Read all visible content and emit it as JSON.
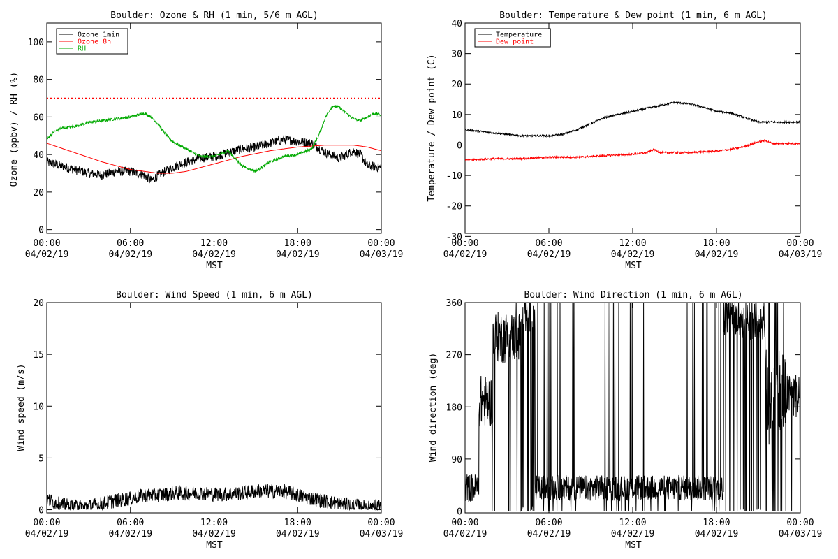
{
  "chart_data": [
    {
      "id": "ozone",
      "type": "line",
      "title": "Boulder: Ozone & RH (1 min, 5/6 m AGL)",
      "ylabel": "Ozone (ppbv) / RH (%)",
      "xlabel": "MST",
      "xlim": [
        0,
        24
      ],
      "ylim": [
        -2,
        110
      ],
      "yticks": [
        0,
        20,
        40,
        60,
        80,
        100
      ],
      "xticks": [
        {
          "h": 0,
          "time": "00:00",
          "date": "04/02/19"
        },
        {
          "h": 6,
          "time": "06:00",
          "date": "04/02/19"
        },
        {
          "h": 12,
          "time": "12:00",
          "date": "04/02/19"
        },
        {
          "h": 18,
          "time": "18:00",
          "date": "04/02/19"
        },
        {
          "h": 24,
          "time": "00:00",
          "date": "04/03/19"
        }
      ],
      "reference_line": {
        "y": 70,
        "color": "#ff0000",
        "style": "dotted"
      },
      "legend": {
        "placement": "top-left"
      },
      "series": [
        {
          "name": "Ozone 1min",
          "color": "#000000",
          "noise": 2.5,
          "x": [
            0,
            1,
            2,
            3,
            4,
            5,
            6,
            7,
            7.5,
            8,
            9,
            10,
            11,
            12,
            13,
            14,
            15,
            16,
            17,
            18,
            19,
            20,
            21,
            22,
            22.5,
            23,
            24
          ],
          "y": [
            36,
            34,
            32,
            30,
            29,
            31,
            31,
            29,
            26,
            29,
            33,
            36,
            38,
            39,
            41,
            43,
            44,
            46,
            48,
            47,
            46,
            41,
            38,
            42,
            40,
            34,
            33
          ]
        },
        {
          "name": "Ozone 8h",
          "color": "#ff0000",
          "noise": 0,
          "x": [
            0,
            2,
            4,
            6,
            7,
            8,
            9,
            10,
            12,
            14,
            16,
            18,
            20,
            21,
            22,
            23,
            24
          ],
          "y": [
            46,
            41,
            36,
            32,
            31,
            30,
            30,
            31,
            35,
            39,
            42,
            44,
            45,
            45,
            45,
            44,
            42
          ]
        },
        {
          "name": "RH",
          "color": "#00aa00",
          "noise": 0.7,
          "x": [
            0,
            0.5,
            1,
            2,
            3,
            4,
            5,
            6,
            7,
            7.5,
            8,
            8.5,
            9,
            10,
            11,
            12,
            13,
            14,
            15,
            16,
            17,
            18,
            19,
            19.5,
            20,
            20.5,
            21,
            21.5,
            22,
            22.5,
            23,
            23.5,
            24
          ],
          "y": [
            48,
            52,
            54,
            55,
            57,
            58,
            59,
            60,
            62,
            60,
            56,
            51,
            47,
            43,
            39,
            39,
            42,
            34,
            31,
            36,
            39,
            40,
            43,
            50,
            60,
            66,
            65,
            62,
            59,
            58,
            60,
            62,
            61
          ]
        }
      ]
    },
    {
      "id": "temp",
      "type": "line",
      "title": "Boulder: Temperature & Dew point (1 min, 6 m AGL)",
      "ylabel": "Temperature / Dew point (C)",
      "xlabel": "MST",
      "xlim": [
        0,
        24
      ],
      "ylim": [
        -29,
        40
      ],
      "yticks": [
        -30,
        -20,
        -10,
        0,
        10,
        20,
        30,
        40
      ],
      "xticks": [
        {
          "h": 0,
          "time": "00:00",
          "date": "04/02/19"
        },
        {
          "h": 6,
          "time": "06:00",
          "date": "04/02/19"
        },
        {
          "h": 12,
          "time": "12:00",
          "date": "04/02/19"
        },
        {
          "h": 18,
          "time": "18:00",
          "date": "04/02/19"
        },
        {
          "h": 24,
          "time": "00:00",
          "date": "04/03/19"
        }
      ],
      "legend": {
        "placement": "top-left"
      },
      "series": [
        {
          "name": "Temperature",
          "color": "#000000",
          "noise": 0.3,
          "x": [
            0,
            1,
            2,
            3,
            4,
            5,
            6,
            7,
            8,
            9,
            10,
            11,
            12,
            13,
            14,
            15,
            16,
            17,
            18,
            19,
            20,
            21,
            22,
            23,
            24
          ],
          "y": [
            5,
            4.5,
            4,
            3.5,
            3,
            3,
            3,
            3.5,
            5,
            7,
            9,
            10,
            11,
            12,
            13,
            14,
            13.5,
            12.5,
            11,
            10.5,
            9,
            7.5,
            7.5,
            7.5,
            7.5
          ]
        },
        {
          "name": "Dew point",
          "color": "#ff0000",
          "noise": 0.3,
          "x": [
            0,
            2,
            4,
            6,
            8,
            10,
            12,
            13,
            13.5,
            14,
            15,
            16,
            18,
            19,
            20,
            21,
            21.5,
            22,
            23,
            24
          ],
          "y": [
            -5,
            -4.5,
            -4.5,
            -4,
            -4,
            -3.5,
            -3,
            -2.5,
            -1.5,
            -2.5,
            -2.5,
            -2.5,
            -2,
            -1.5,
            -0.5,
            1,
            1.5,
            0.5,
            0.5,
            0.5
          ]
        }
      ]
    },
    {
      "id": "wspd",
      "type": "line",
      "title": "Boulder: Wind Speed (1 min, 6 m AGL)",
      "ylabel": "Wind speed (m/s)",
      "xlabel": "MST",
      "xlim": [
        0,
        24
      ],
      "ylim": [
        -0.3,
        20
      ],
      "yticks": [
        0,
        5,
        10,
        15,
        20
      ],
      "xticks": [
        {
          "h": 0,
          "time": "00:00",
          "date": "04/02/19"
        },
        {
          "h": 6,
          "time": "06:00",
          "date": "04/02/19"
        },
        {
          "h": 12,
          "time": "12:00",
          "date": "04/02/19"
        },
        {
          "h": 18,
          "time": "18:00",
          "date": "04/02/19"
        },
        {
          "h": 24,
          "time": "00:00",
          "date": "04/03/19"
        }
      ],
      "series": [
        {
          "name": "",
          "color": "#000000",
          "noise": 0.7,
          "x": [
            0,
            1,
            2,
            3,
            4,
            5,
            6,
            7,
            8,
            9,
            10,
            11,
            12,
            13,
            14,
            15,
            16,
            17,
            18,
            19,
            20,
            21,
            22,
            23,
            24
          ],
          "y": [
            1,
            0.5,
            0.3,
            0.3,
            0.6,
            0.9,
            1.1,
            1.4,
            1.4,
            1.6,
            1.6,
            1.6,
            1.5,
            1.5,
            1.6,
            1.8,
            1.8,
            1.8,
            1.4,
            1.1,
            0.8,
            0.6,
            0.4,
            0.3,
            0.4
          ],
          "min": 0
        }
      ]
    },
    {
      "id": "wdir",
      "type": "line",
      "title": "Boulder: Wind Direction (1 min, 6 m AGL)",
      "ylabel": "Wind direction (deg)",
      "xlabel": "MST",
      "xlim": [
        0,
        24
      ],
      "ylim": [
        -3,
        360
      ],
      "yticks": [
        0,
        90,
        180,
        270,
        360
      ],
      "xticks": [
        {
          "h": 0,
          "time": "00:00",
          "date": "04/02/19"
        },
        {
          "h": 6,
          "time": "06:00",
          "date": "04/02/19"
        },
        {
          "h": 12,
          "time": "12:00",
          "date": "04/02/19"
        },
        {
          "h": 18,
          "time": "18:00",
          "date": "04/02/19"
        },
        {
          "h": 24,
          "time": "00:00",
          "date": "04/03/19"
        }
      ],
      "series": [
        {
          "name": "",
          "color": "#000000",
          "segments": [
            {
              "from": 0,
              "to": 1,
              "base": 40,
              "spread": 25,
              "jump": 0
            },
            {
              "from": 1,
              "to": 2,
              "base": 190,
              "spread": 45,
              "jump": 0.03
            },
            {
              "from": 2,
              "to": 4,
              "base": 300,
              "spread": 45,
              "jump": 0.04
            },
            {
              "from": 4,
              "to": 5,
              "base": 340,
              "spread": 30,
              "jump": 0.25
            },
            {
              "from": 5,
              "to": 18.5,
              "base": 40,
              "spread": 22,
              "jump": 0.08
            },
            {
              "from": 18.5,
              "to": 21.5,
              "base": 330,
              "spread": 35,
              "jump": 0.2
            },
            {
              "from": 21.5,
              "to": 23,
              "base": 200,
              "spread": 90,
              "jump": 0.25
            },
            {
              "from": 23,
              "to": 24,
              "base": 200,
              "spread": 40,
              "jump": 0.05
            }
          ]
        }
      ]
    }
  ]
}
